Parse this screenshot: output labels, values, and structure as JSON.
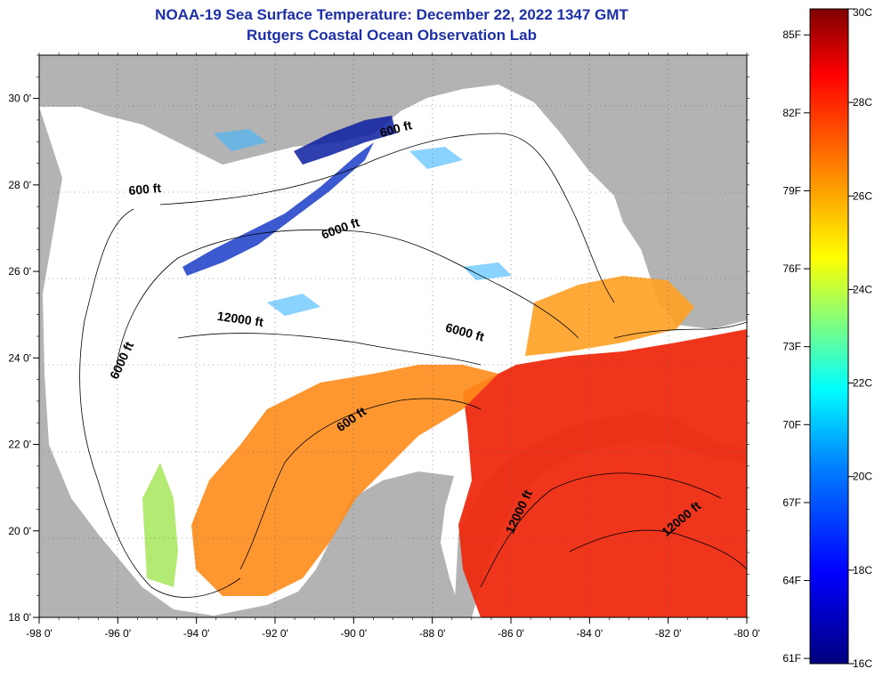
{
  "header": {
    "title": "NOAA-19 Sea Surface Temperature:  December 22, 2022 1347 GMT",
    "subtitle": "Rutgers Coastal Ocean Observation Lab"
  },
  "map": {
    "lon_labels": [
      "-98 0'",
      "-96 0'",
      "-94 0'",
      "-92 0'",
      "-90 0'",
      "-88 0'",
      "-86 0'",
      "-84 0'",
      "-82 0'",
      "-80 0'"
    ],
    "lat_labels": [
      "30 0'",
      "28 0'",
      "26 0'",
      "24 0'",
      "22 0'",
      "20 0'",
      "18 0'"
    ],
    "lon_range": [
      -98,
      -80
    ],
    "lat_range": [
      18,
      31
    ],
    "contour_labels": [
      {
        "text": "600 ft",
        "lon": -95.3,
        "lat": 27.8,
        "angle": -5
      },
      {
        "text": "6000 ft",
        "lon": -90.3,
        "lat": 26.9,
        "angle": -20
      },
      {
        "text": "600 ft",
        "lon": -88.9,
        "lat": 29.2,
        "angle": -15
      },
      {
        "text": "12000 ft",
        "lon": -92.9,
        "lat": 24.8,
        "angle": 8
      },
      {
        "text": "6000 ft",
        "lon": -87.2,
        "lat": 24.5,
        "angle": 15
      },
      {
        "text": "6000 ft",
        "lon": -95.8,
        "lat": 23.9,
        "angle": -65
      },
      {
        "text": "600 ft",
        "lon": -90.0,
        "lat": 22.5,
        "angle": -35
      },
      {
        "text": "12000 ft",
        "lon": -85.7,
        "lat": 20.4,
        "angle": -65
      },
      {
        "text": "12000 ft",
        "lon": -81.6,
        "lat": 20.2,
        "angle": -40
      }
    ],
    "colors": {
      "land": "#b3b3b3",
      "cloud": "#ffffff",
      "contour": "#000000"
    }
  },
  "colorbar": {
    "fahrenheit_labels": [
      "85F",
      "82F",
      "79F",
      "76F",
      "73F",
      "70F",
      "67F",
      "64F",
      "61F"
    ],
    "celsius_labels": [
      "30C",
      "28C",
      "26C",
      "24C",
      "22C",
      "20C",
      "18C",
      "16C"
    ],
    "range_c": [
      16,
      30
    ],
    "stops": [
      "#00007f",
      "#0000ff",
      "#007fff",
      "#00ffff",
      "#7fff7f",
      "#ffff00",
      "#ff7f00",
      "#ff0000",
      "#7f0000"
    ]
  }
}
